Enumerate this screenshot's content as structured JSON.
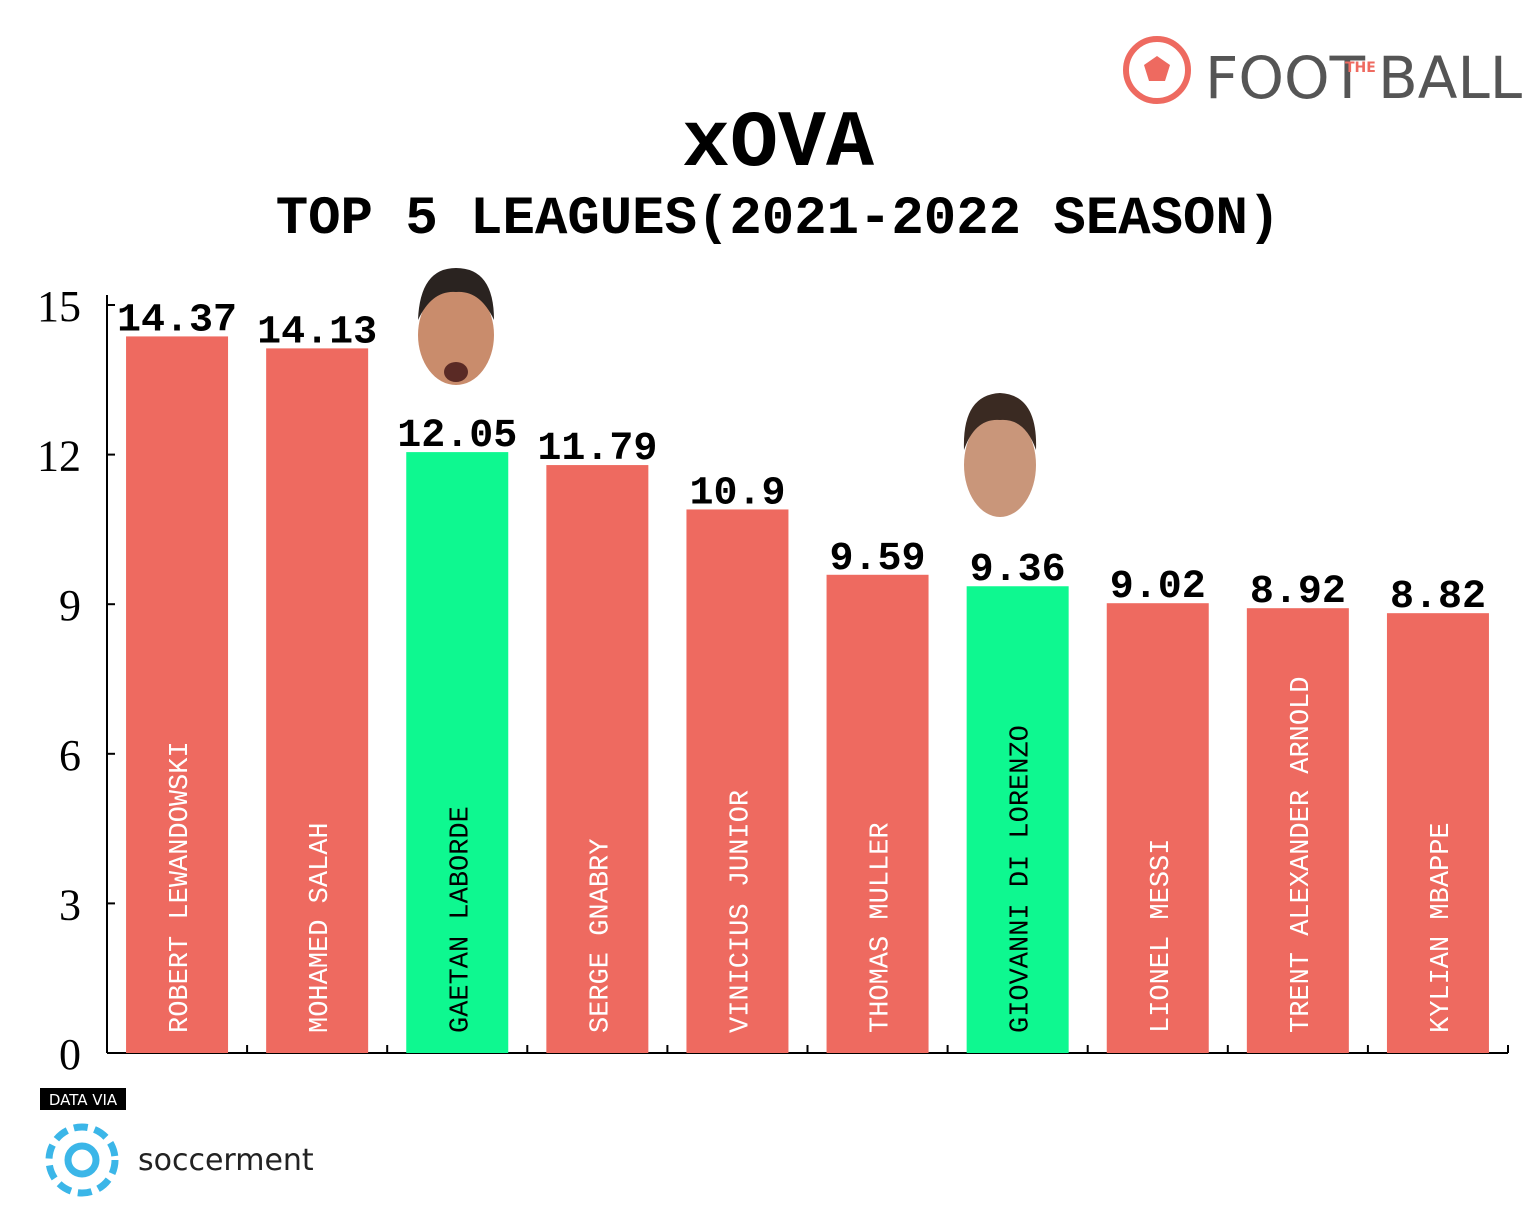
{
  "chart_data": {
    "type": "bar",
    "title": "xOVA",
    "subtitle": "TOP 5 LEAGUES(2021-2022 SEASON)",
    "categories": [
      "ROBERT LEWANDOWSKI",
      "MOHAMED SALAH",
      "GAETAN LABORDE",
      "SERGE GNABRY",
      "VINICIUS JUNIOR",
      "THOMAS MULLER",
      "GIOVANNI DI LORENZO",
      "LIONEL MESSI",
      "TRENT ALEXANDER ARNOLD",
      "KYLIAN MBAPPE"
    ],
    "values": [
      14.37,
      14.13,
      12.05,
      11.79,
      10.9,
      9.59,
      9.36,
      9.02,
      8.92,
      8.82
    ],
    "colors": [
      "#ee6a60",
      "#ee6a60",
      "#0ef890",
      "#ee6a60",
      "#ee6a60",
      "#ee6a60",
      "#0ef890",
      "#ee6a60",
      "#ee6a60",
      "#ee6a60"
    ],
    "label_colors": [
      "#ffffff",
      "#ffffff",
      "#000000",
      "#ffffff",
      "#ffffff",
      "#ffffff",
      "#000000",
      "#ffffff",
      "#ffffff",
      "#ffffff"
    ],
    "ylim": [
      0,
      15
    ],
    "yticks": [
      0,
      3,
      6,
      9,
      12,
      15
    ],
    "grid": false
  },
  "logo": {
    "left": "FOOT",
    "middle": "THE",
    "right": "BALL"
  },
  "source": {
    "label": "DATA VIA",
    "name": "soccerment"
  }
}
